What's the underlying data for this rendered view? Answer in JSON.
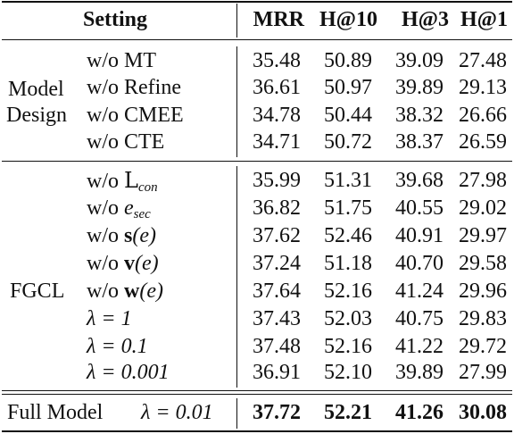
{
  "header": {
    "setting": "Setting",
    "columns": [
      "MRR",
      "H@10",
      "H@3",
      "H@1"
    ]
  },
  "groups": [
    {
      "label_lines": [
        "Model",
        "Design"
      ],
      "rows": [
        {
          "setting": "w/o MT",
          "values": [
            "35.48",
            "50.89",
            "39.09",
            "27.48"
          ]
        },
        {
          "setting": "w/o Refine",
          "values": [
            "36.61",
            "50.97",
            "39.89",
            "29.13"
          ]
        },
        {
          "setting": "w/o CMEE",
          "values": [
            "34.78",
            "50.44",
            "38.32",
            "26.66"
          ]
        },
        {
          "setting": "w/o CTE",
          "values": [
            "34.71",
            "50.72",
            "38.37",
            "26.59"
          ]
        }
      ]
    },
    {
      "label_lines": [
        "FGCL"
      ],
      "rows": [
        {
          "prefix": "w/o",
          "symbol": "L",
          "sub": "con",
          "values": [
            "35.99",
            "51.31",
            "39.68",
            "27.98"
          ]
        },
        {
          "prefix": "w/o",
          "symbol": "e",
          "sub": "sec",
          "values": [
            "36.82",
            "51.75",
            "40.55",
            "29.02"
          ]
        },
        {
          "prefix": "w/o",
          "symbol": "s",
          "arg": "(e)",
          "values": [
            "37.62",
            "52.46",
            "40.91",
            "29.97"
          ]
        },
        {
          "prefix": "w/o",
          "symbol": "v",
          "arg": "(e)",
          "values": [
            "37.24",
            "51.18",
            "40.70",
            "29.58"
          ]
        },
        {
          "prefix": "w/o",
          "symbol": "w",
          "arg": "(e)",
          "values": [
            "37.64",
            "52.16",
            "41.24",
            "29.96"
          ]
        },
        {
          "setting": "λ = 1",
          "values": [
            "37.43",
            "52.03",
            "40.75",
            "29.83"
          ]
        },
        {
          "setting": "λ = 0.1",
          "values": [
            "37.48",
            "52.16",
            "41.22",
            "29.72"
          ]
        },
        {
          "setting": "λ = 0.001",
          "values": [
            "36.91",
            "52.10",
            "39.89",
            "27.99"
          ]
        }
      ]
    }
  ],
  "full_model": {
    "label": "Full Model",
    "setting": "λ = 0.01",
    "values": [
      "37.72",
      "52.21",
      "41.26",
      "30.08"
    ]
  }
}
